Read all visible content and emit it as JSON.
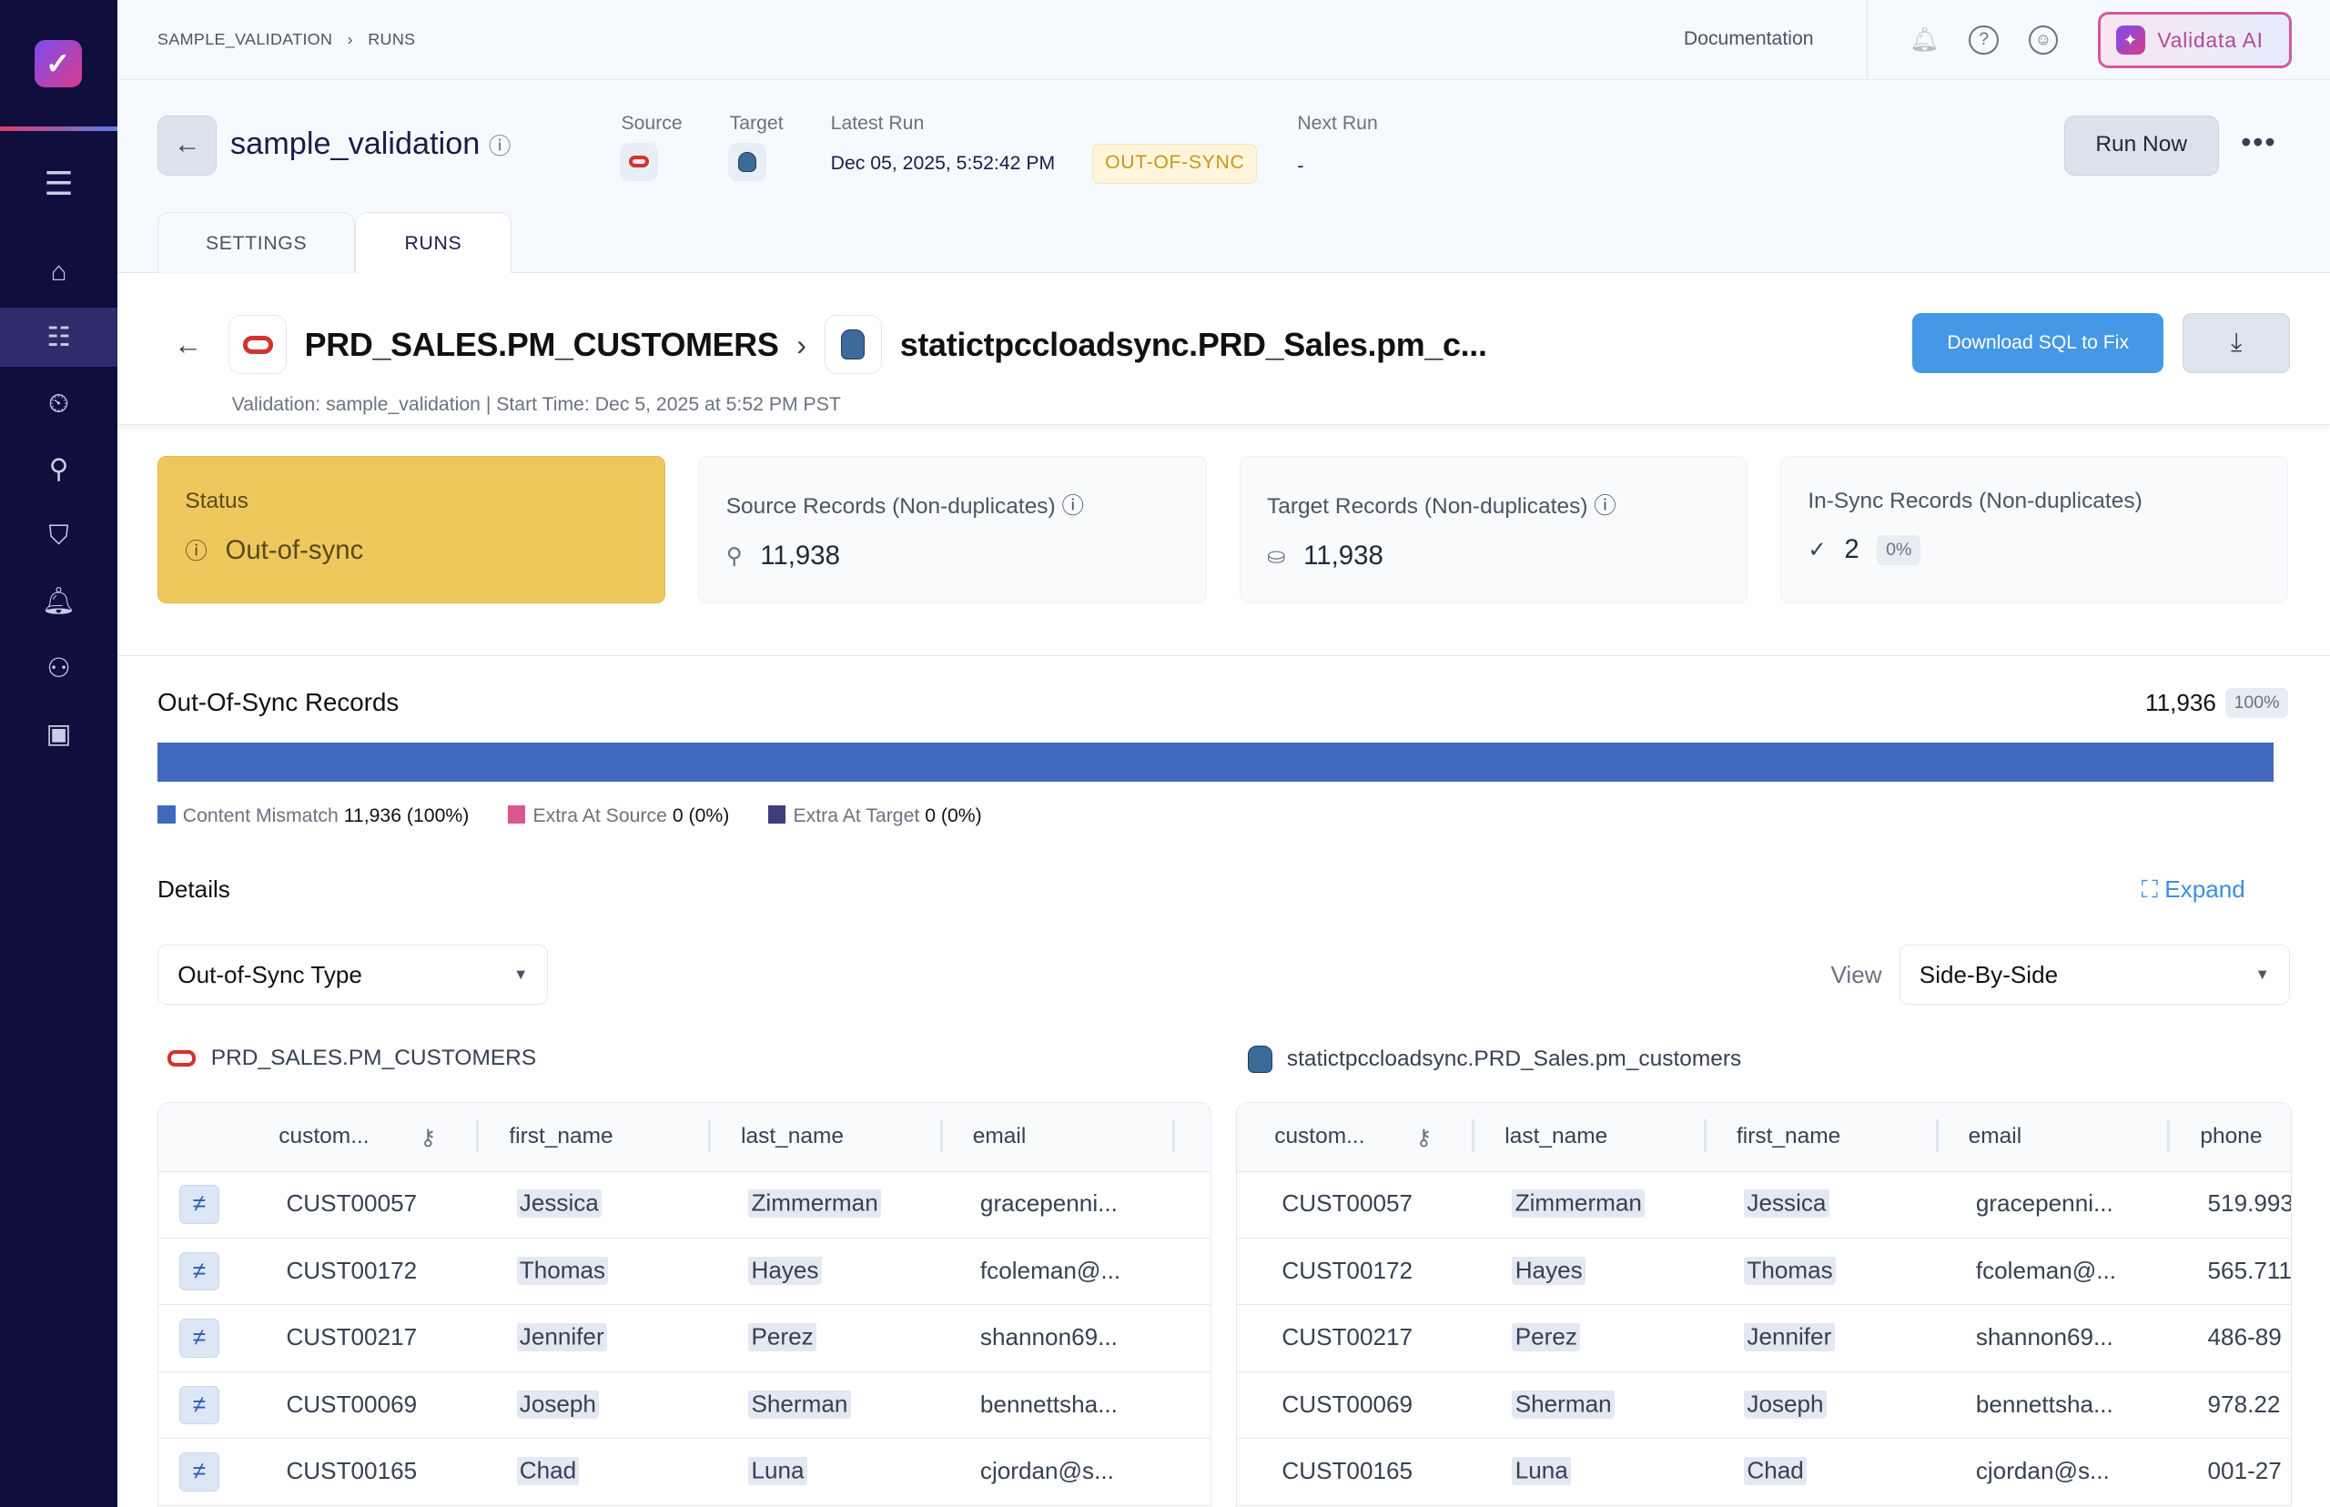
{
  "sidebar": {
    "items": [
      {
        "icon": "menu-icon"
      },
      {
        "icon": "home-icon"
      },
      {
        "icon": "validations-icon",
        "active": true
      },
      {
        "icon": "reports-icon"
      },
      {
        "icon": "connections-icon"
      },
      {
        "icon": "shield-icon"
      },
      {
        "icon": "alerts-icon"
      },
      {
        "icon": "users-icon"
      },
      {
        "icon": "monitor-icon"
      }
    ]
  },
  "topbar": {
    "breadcrumb": [
      "SAMPLE_VALIDATION",
      "RUNS"
    ],
    "documentation": "Documentation",
    "ai_label": "Validata AI"
  },
  "header": {
    "title": "sample_validation",
    "source_label": "Source",
    "target_label": "Target",
    "latest_run_label": "Latest Run",
    "latest_run": "Dec 05, 2025, 5:52:42 PM",
    "status_badge": "OUT-OF-SYNC",
    "next_run_label": "Next Run",
    "next_run": "-",
    "run_now": "Run Now",
    "tabs": [
      "SETTINGS",
      "RUNS"
    ],
    "active_tab": "RUNS"
  },
  "run": {
    "source_table": "PRD_SALES.PM_CUSTOMERS",
    "target_table": "statictpccloadsync.PRD_Sales.pm_c...",
    "download_sql": "Download SQL to Fix",
    "subtitle": "Validation: sample_validation | Start Time: Dec 5, 2025 at 5:52 PM PST"
  },
  "cards": [
    {
      "label": "Status",
      "value": "Out-of-sync",
      "color": "#eec75d"
    },
    {
      "label": "Source Records (Non-duplicates)",
      "value": "11,938"
    },
    {
      "label": "Target Records (Non-duplicates)",
      "value": "11,938"
    },
    {
      "label": "In-Sync Records (Non-duplicates)",
      "value": "2",
      "pct": "0%"
    }
  ],
  "out_of_sync": {
    "title": "Out-Of-Sync Records",
    "count": "11,936",
    "pct": "100%",
    "fill_percent": 100,
    "legend": [
      {
        "label": "Content Mismatch",
        "value": "11,936 (100%)",
        "color": "#4169be"
      },
      {
        "label": "Extra At Source",
        "value": "0 (0%)",
        "color": "#d9578f"
      },
      {
        "label": "Extra At Target",
        "value": "0 (0%)",
        "color": "#3f3d7a"
      }
    ]
  },
  "details": {
    "title": "Details",
    "expand": "Expand",
    "filter": "Out-of-Sync Type",
    "view_label": "View",
    "view": "Side-By-Side"
  },
  "source_grid": {
    "title": "PRD_SALES.PM_CUSTOMERS",
    "columns": [
      "custom...",
      "first_name",
      "last_name",
      "email"
    ],
    "rows": [
      [
        "CUST00057",
        "Jessica",
        "Zimmerman",
        "gracepenni..."
      ],
      [
        "CUST00172",
        "Thomas",
        "Hayes",
        "fcoleman@..."
      ],
      [
        "CUST00217",
        "Jennifer",
        "Perez",
        "shannon69..."
      ],
      [
        "CUST00069",
        "Joseph",
        "Sherman",
        "bennettsha..."
      ],
      [
        "CUST00165",
        "Chad",
        "Luna",
        "cjordan@s..."
      ]
    ]
  },
  "target_grid": {
    "title": "statictpccloadsync.PRD_Sales.pm_customers",
    "columns": [
      "custom...",
      "last_name",
      "first_name",
      "email",
      "phone"
    ],
    "rows": [
      [
        "CUST00057",
        "Zimmerman",
        "Jessica",
        "gracepenni...",
        "519.993"
      ],
      [
        "CUST00172",
        "Hayes",
        "Thomas",
        "fcoleman@...",
        "565.711"
      ],
      [
        "CUST00217",
        "Perez",
        "Jennifer",
        "shannon69...",
        "486-89"
      ],
      [
        "CUST00069",
        "Sherman",
        "Joseph",
        "bennettsha...",
        "978.22"
      ],
      [
        "CUST00165",
        "Luna",
        "Chad",
        "cjordan@s...",
        "001-27"
      ]
    ]
  }
}
